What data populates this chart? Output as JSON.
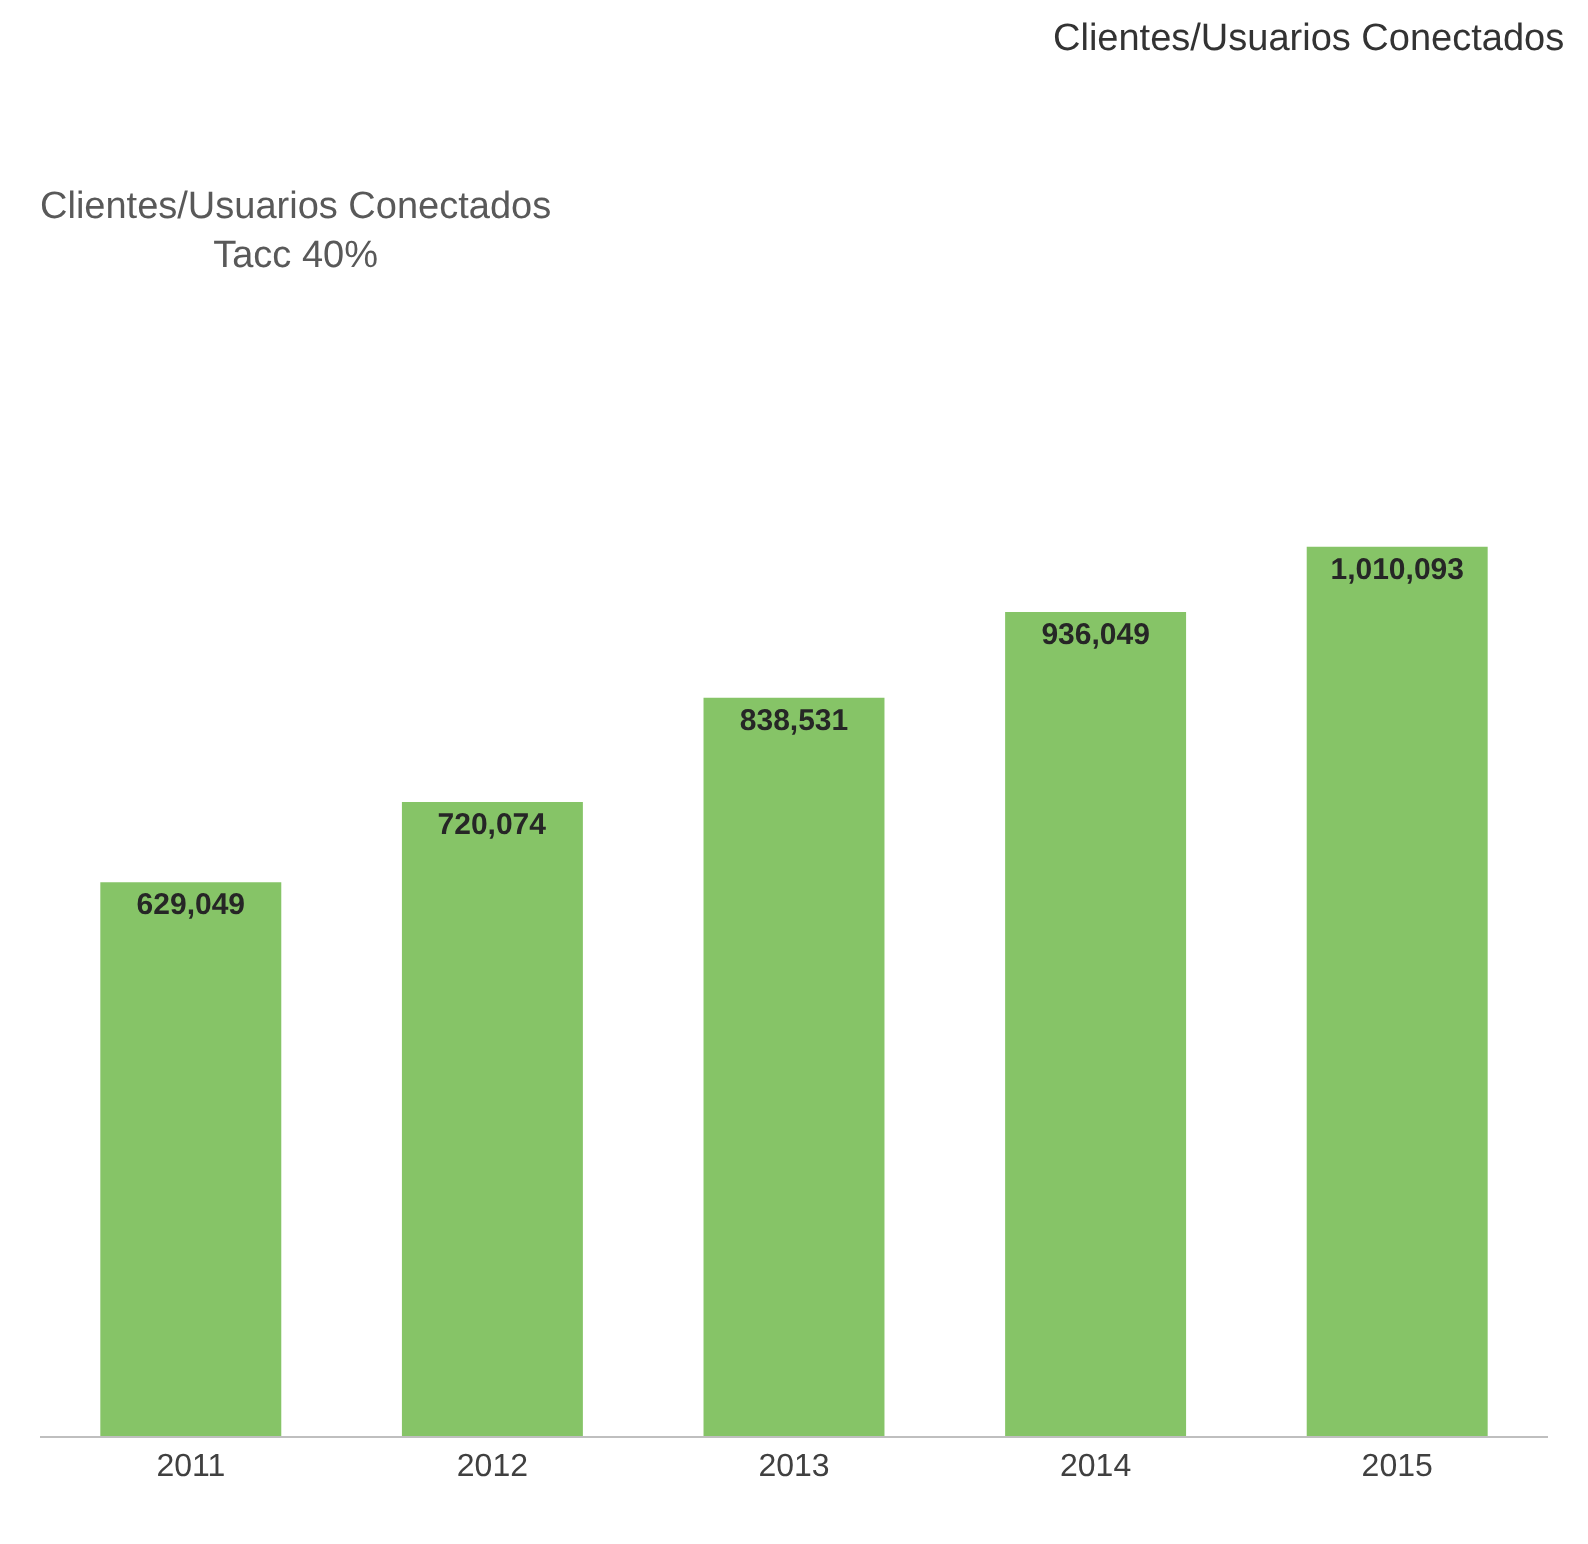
{
  "chart_data": {
    "type": "bar",
    "title": "Clientes/Usuarios Conectados",
    "subtitle": "Clientes/Usuarios Conectados\nTacc 40%",
    "categories": [
      "2011",
      "2012",
      "2013",
      "2014",
      "2015"
    ],
    "values": [
      629049,
      720074,
      838531,
      936049,
      1010093
    ],
    "value_labels": [
      "629,049",
      "720,074",
      "838,531",
      "936,049",
      "1,010,093"
    ],
    "color": "#86c467",
    "legend": false
  }
}
